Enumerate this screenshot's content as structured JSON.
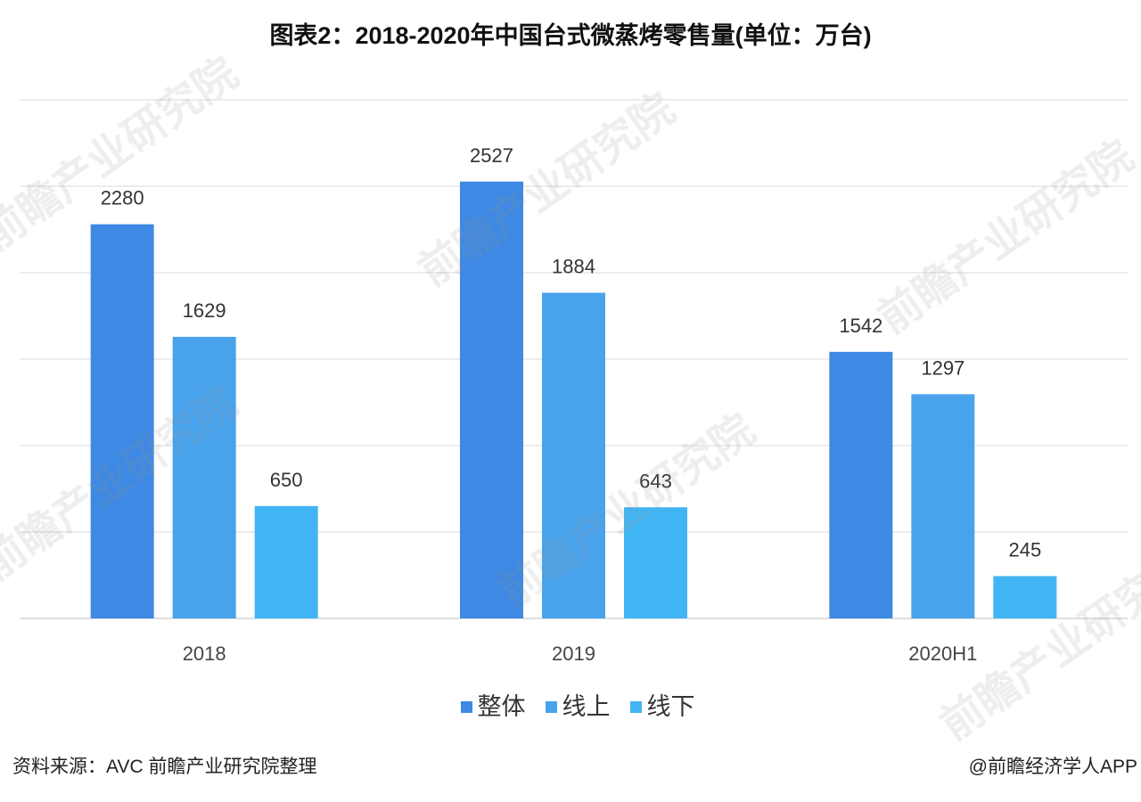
{
  "chart_data": {
    "type": "bar",
    "title": "图表2：2018-2020年中国台式微蒸烤零售量(单位：万台)",
    "categories": [
      "2018",
      "2019",
      "2020H1"
    ],
    "series": [
      {
        "name": "整体",
        "values": [
          2280,
          2527,
          1542
        ],
        "color": "#3d89e3"
      },
      {
        "name": "线上",
        "values": [
          1629,
          1884,
          1297
        ],
        "color": "#49a3ec"
      },
      {
        "name": "线下",
        "values": [
          650,
          643,
          245
        ],
        "color": "#41b5f3"
      }
    ],
    "ylim": [
      0,
      3000
    ],
    "y_grid_step": 500,
    "grid": true,
    "show_y_tick_labels": false,
    "data_labels": true,
    "legend": "bottom-center"
  },
  "footer": {
    "source": "资料来源：AVC 前瞻产业研究院整理",
    "credit": "@前瞻经济学人APP"
  },
  "watermark": {
    "text": "前瞻产业研究院"
  }
}
